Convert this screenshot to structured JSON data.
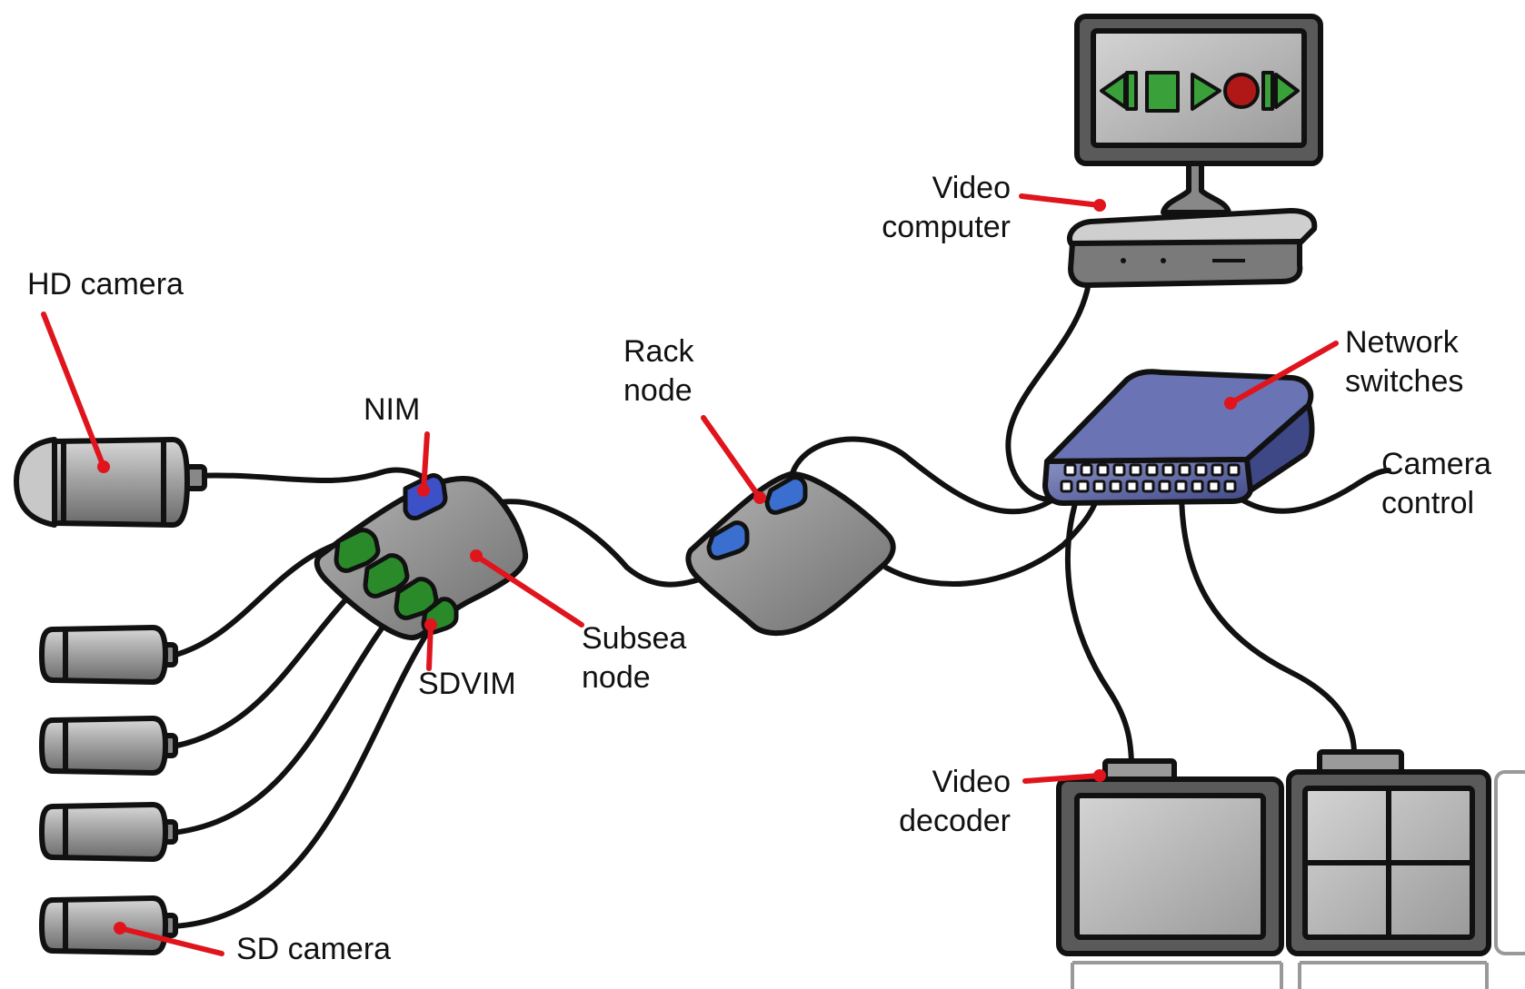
{
  "labels": {
    "hd_camera": "HD camera",
    "nim": "NIM",
    "rack_node": "Rack\nnode",
    "video_computer": "Video\ncomputer",
    "network_switches": "Network\nswitches",
    "camera_control": "Camera\ncontrol",
    "subsea_node": "Subsea\nnode",
    "sdvim": "SDVIM",
    "video_decoder": "Video\ndecoder",
    "sd_camera": "SD camera"
  },
  "colors": {
    "pointer": "#e0141c",
    "cable": "#111111",
    "device_gray": "#8c8c8c",
    "switch_blue": "#5a64a0",
    "nim_blue": "#3c50c8",
    "sdvim_green": "#2a8a2a",
    "media_green": "#3aa03a",
    "record_red": "#b01818"
  },
  "icons": [
    "previous-icon",
    "stop-icon",
    "play-icon",
    "record-icon",
    "next-icon"
  ]
}
